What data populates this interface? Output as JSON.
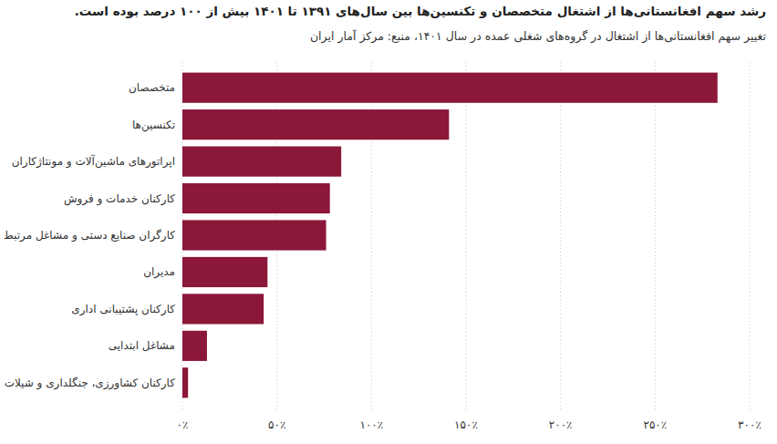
{
  "chart_data": {
    "type": "bar",
    "title": "رشد سهم افغانستانی‌ها از اشتغال متخصصان و تکنسین‌ها بین سال‌های ۱۳۹۱ تا ۱۴۰۱ بیش از ۱۰۰ درصد بوده است.",
    "subtitle": "تغییر سهم افغانستانی‌ها از اشتغال در گروه‌های شغلی عمده در سال ۱۴۰۱، منبع: مرکز آمار ایران",
    "categories": [
      "متخصصان",
      "تکنسین‌ها",
      "اپراتورهای ماشین‌آلات و مونتاژکاران",
      "کارکنان خدمات و فروش",
      "کارگران صنایع دستی و مشاغل مرتبط",
      "مدیران",
      "کارکنان پشتیبانی اداری",
      "مشاغل ابتدایی",
      "کارکنان کشاورزی، جنگلداری و شیلات"
    ],
    "values": [
      283,
      141,
      84,
      78,
      76,
      45,
      43,
      13,
      3
    ],
    "color": "#8b1739",
    "orientation": "horizontal",
    "xlim": [
      0,
      300
    ],
    "xticks": [
      {
        "value": 0,
        "label": "۰٪"
      },
      {
        "value": 50,
        "label": "۵۰٪"
      },
      {
        "value": 100,
        "label": "۱۰۰٪"
      },
      {
        "value": 150,
        "label": "۱۵۰٪"
      },
      {
        "value": 200,
        "label": "۲۰۰٪"
      },
      {
        "value": 250,
        "label": "۲۵۰٪"
      },
      {
        "value": 300,
        "label": "۳۰۰٪"
      }
    ],
    "grid": true
  }
}
